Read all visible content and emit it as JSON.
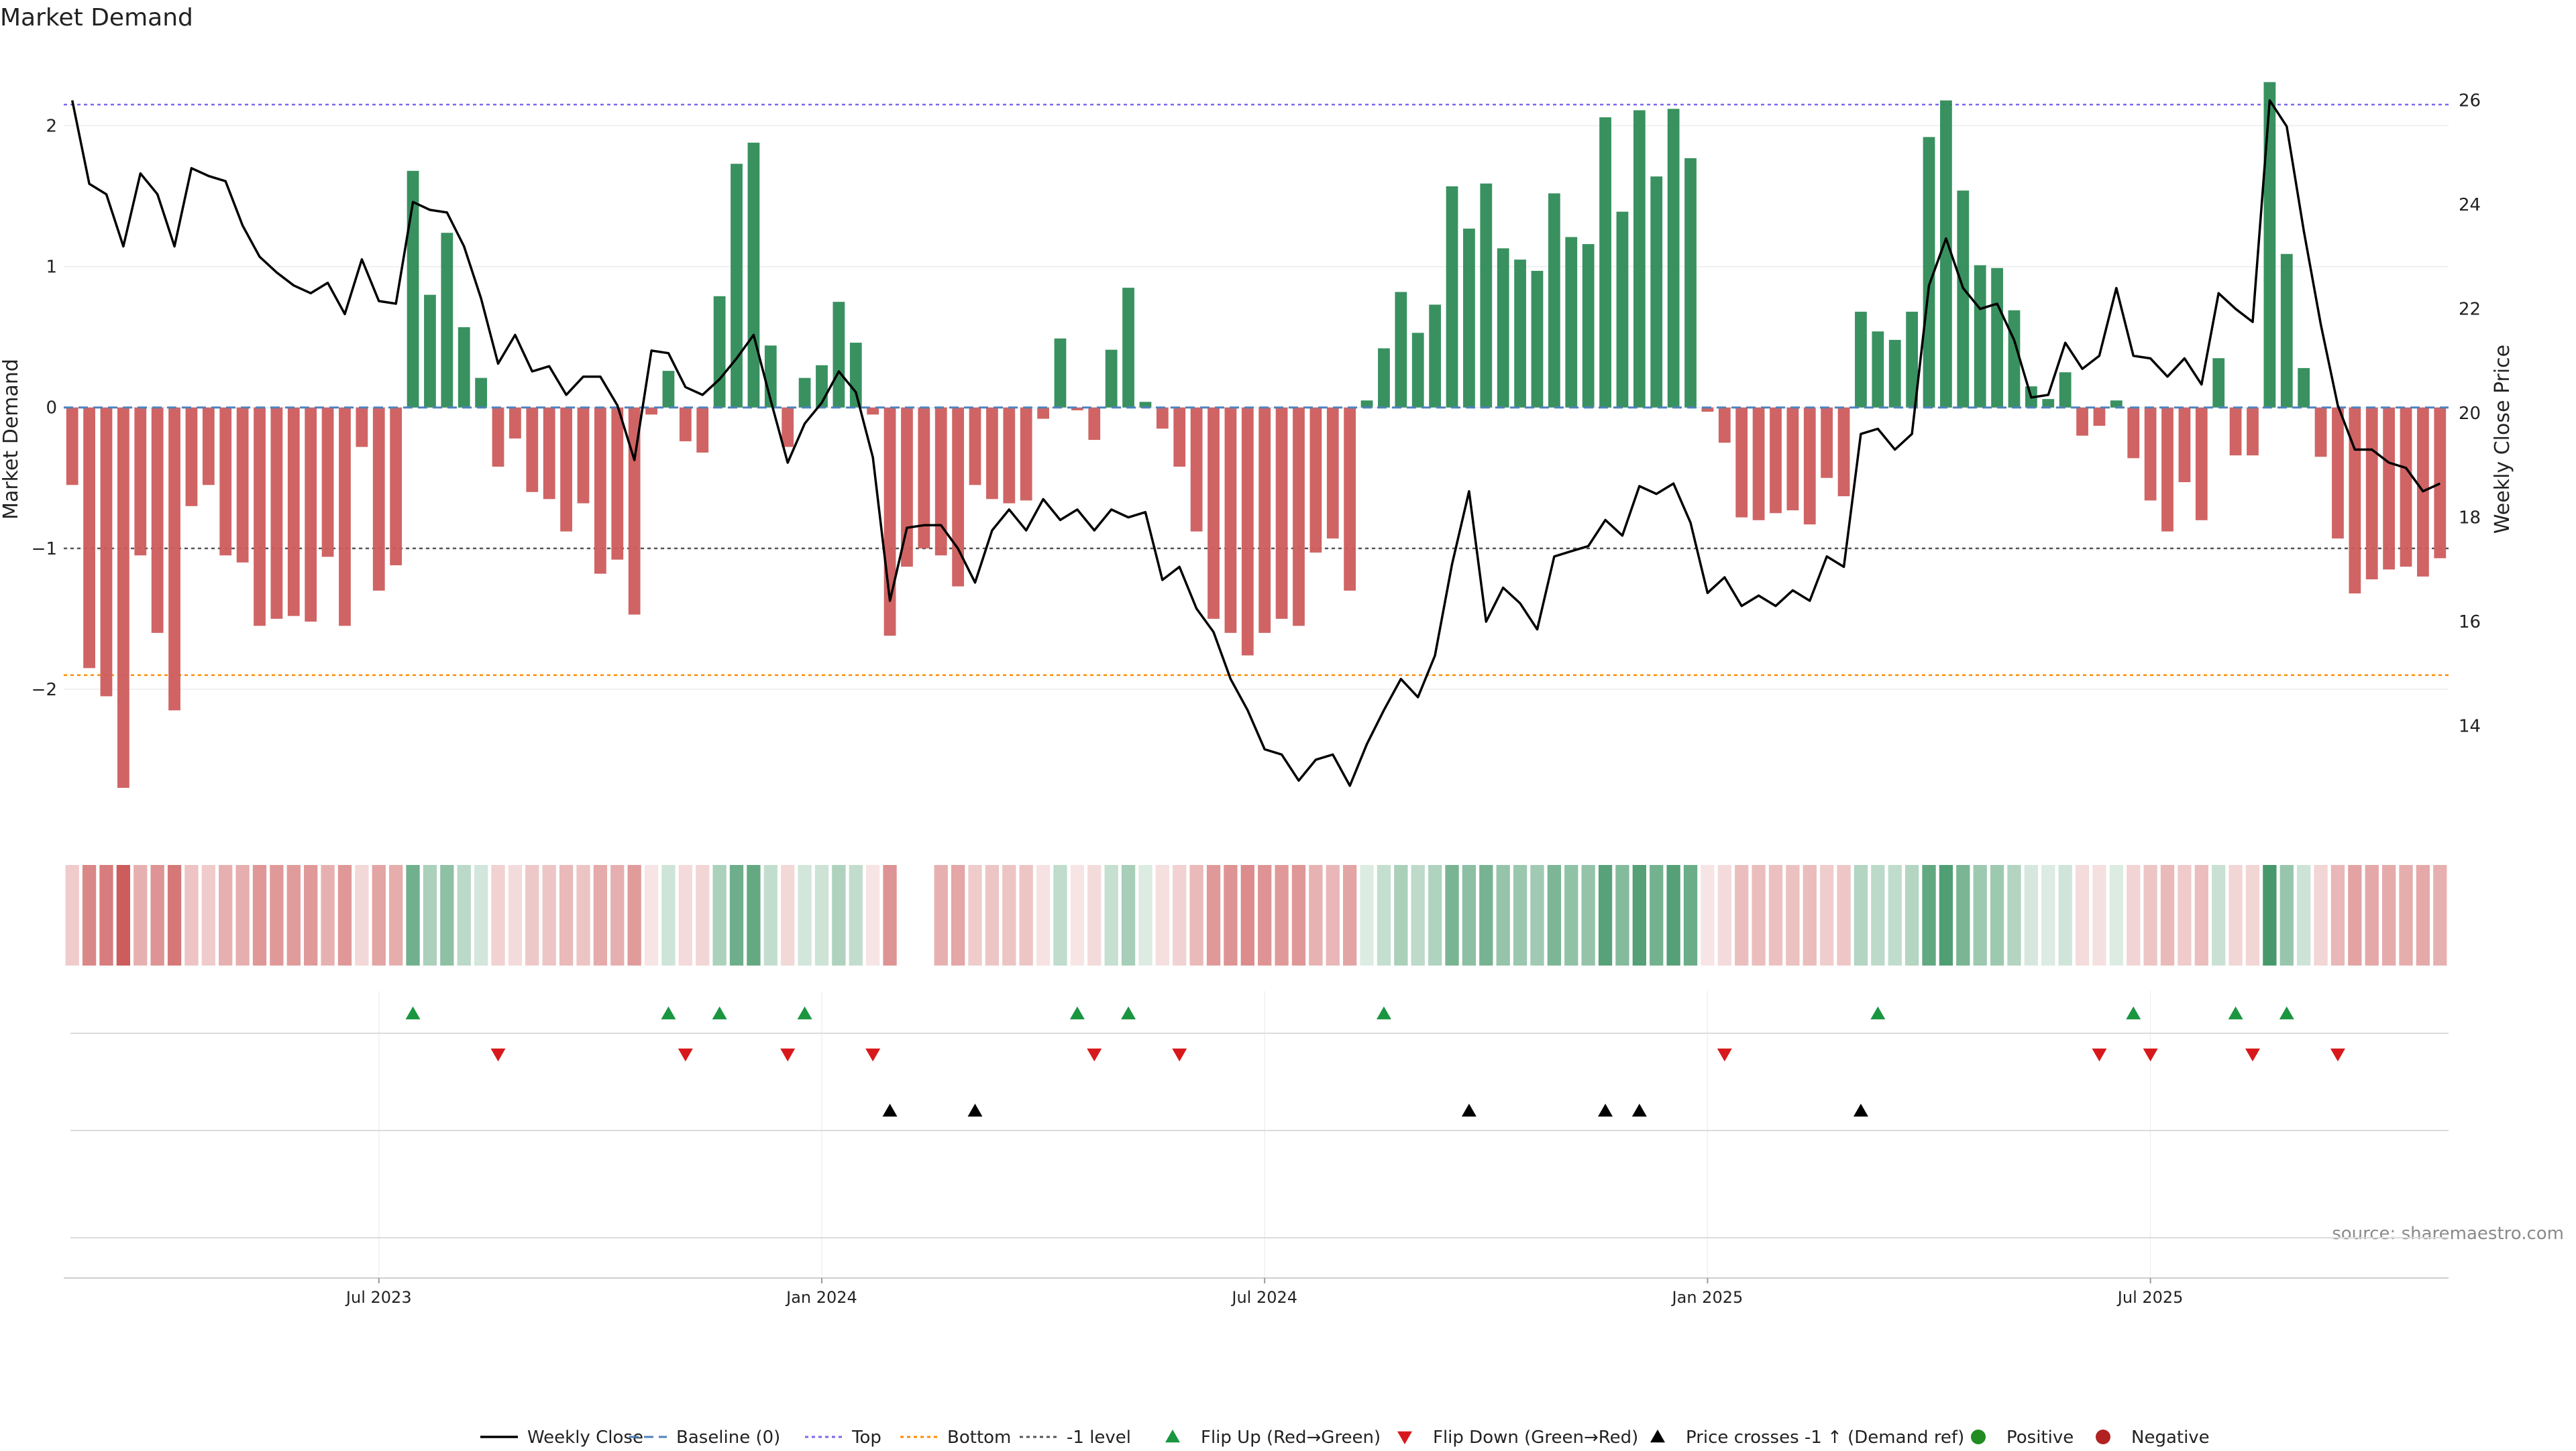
{
  "title": "Market Demand",
  "chart_data": {
    "type": "bar",
    "title": "Market Demand",
    "ylabel": "Market Demand",
    "y2label": "Weekly Close Price",
    "ylim": [
      -3.0,
      2.55
    ],
    "y2lim": [
      12.0,
      27.0
    ],
    "yticks": [
      -2,
      -1,
      0,
      1,
      2
    ],
    "y2ticks": [
      14,
      16,
      18,
      20,
      22,
      24,
      26
    ],
    "ref_lines": {
      "top": 2.15,
      "bottom": -1.9,
      "minus_one": -1.0,
      "baseline": 0
    },
    "x_tick_labels": [
      {
        "label": "Jul 2023",
        "week": 18
      },
      {
        "label": "Jan 2024",
        "week": 44
      },
      {
        "label": "Jul 2024",
        "week": 70
      },
      {
        "label": "Jan 2025",
        "week": 96
      },
      {
        "label": "Jul 2025",
        "week": 122
      }
    ],
    "demand": [
      -0.55,
      -1.85,
      -2.05,
      -2.7,
      -1.05,
      -1.6,
      -2.15,
      -0.7,
      -0.55,
      -1.05,
      -1.1,
      -1.55,
      -1.5,
      -1.48,
      -1.52,
      -1.06,
      -1.55,
      -0.28,
      -1.3,
      -1.12,
      1.68,
      0.8,
      1.24,
      0.57,
      0.21,
      -0.42,
      -0.22,
      -0.6,
      -0.65,
      -0.88,
      -0.68,
      -1.18,
      -1.08,
      -1.47,
      -0.05,
      0.26,
      -0.24,
      -0.32,
      0.79,
      1.73,
      1.88,
      0.44,
      -0.28,
      0.21,
      0.3,
      0.75,
      0.46,
      -0.05,
      -1.62,
      -1.13,
      -1.0,
      -1.05,
      -1.27,
      -0.55,
      -0.65,
      -0.68,
      -0.66,
      -0.08,
      0.49,
      -0.02,
      -0.23,
      0.41,
      0.85,
      0.04,
      -0.15,
      -0.42,
      -0.88,
      -1.5,
      -1.6,
      -1.76,
      -1.6,
      -1.5,
      -1.55,
      -1.03,
      -0.93,
      -1.3,
      0.05,
      0.42,
      0.82,
      0.53,
      0.73,
      1.57,
      1.27,
      1.59,
      1.13,
      1.05,
      0.97,
      1.52,
      1.21,
      1.16,
      2.06,
      1.39,
      2.11,
      1.64,
      2.12,
      1.77,
      -0.03,
      -0.25,
      -0.78,
      -0.8,
      -0.75,
      -0.73,
      -0.83,
      -0.5,
      -0.63,
      0.68,
      0.54,
      0.48,
      0.68,
      1.92,
      2.18,
      1.54,
      1.01,
      0.99,
      0.69,
      0.15,
      0.06,
      0.25,
      -0.2,
      -0.13,
      0.05,
      -0.36,
      -0.66,
      -0.88,
      -0.53,
      -0.8,
      0.35,
      -0.34,
      -0.34,
      2.31,
      1.09,
      0.28,
      -0.35,
      -0.93,
      -1.32,
      -1.22,
      -1.15,
      -1.13,
      -1.2,
      -1.07
    ],
    "weekly_close": [
      26.0,
      24.4,
      24.2,
      23.2,
      24.6,
      24.2,
      23.2,
      24.7,
      24.55,
      24.45,
      23.6,
      23.0,
      22.7,
      22.45,
      22.3,
      22.5,
      21.9,
      22.95,
      22.15,
      22.1,
      24.05,
      23.9,
      23.85,
      23.2,
      22.2,
      20.95,
      21.5,
      20.8,
      20.9,
      20.35,
      20.7,
      20.7,
      20.15,
      19.1,
      21.2,
      21.15,
      20.5,
      20.35,
      20.65,
      21.05,
      21.5,
      20.25,
      19.05,
      19.8,
      20.2,
      20.8,
      20.4,
      19.15,
      16.4,
      17.8,
      17.85,
      17.85,
      17.4,
      16.75,
      17.75,
      18.15,
      17.75,
      18.35,
      17.95,
      18.15,
      17.75,
      18.15,
      18.0,
      18.1,
      16.8,
      17.05,
      16.25,
      15.8,
      14.9,
      14.3,
      13.55,
      13.45,
      12.95,
      13.35,
      13.45,
      12.85,
      13.65,
      14.3,
      14.9,
      14.55,
      15.35,
      17.1,
      18.5,
      16.0,
      16.65,
      16.35,
      15.85,
      17.25,
      17.35,
      17.45,
      17.95,
      17.65,
      18.6,
      18.45,
      18.65,
      17.9,
      16.55,
      16.85,
      16.3,
      16.5,
      16.3,
      16.6,
      16.4,
      17.25,
      17.05,
      19.6,
      19.7,
      19.3,
      19.6,
      22.45,
      23.35,
      22.4,
      22.0,
      22.1,
      21.4,
      20.3,
      20.35,
      21.35,
      20.85,
      21.1,
      22.4,
      21.1,
      21.05,
      20.7,
      21.05,
      20.55,
      22.3,
      22.0,
      21.75,
      26.0,
      25.5,
      23.5,
      21.7,
      20.15,
      19.3,
      19.3,
      19.05,
      18.95,
      18.5,
      18.65
    ],
    "flip_up_weeks": [
      20,
      35,
      38,
      43,
      59,
      62,
      77,
      106,
      121,
      127,
      130
    ],
    "flip_down_weeks": [
      25,
      36,
      42,
      47,
      60,
      65,
      97,
      119,
      122,
      128,
      133
    ],
    "price_cross_weeks": [
      48,
      53,
      82,
      90,
      92,
      105
    ],
    "legend": [
      "Weekly Close",
      "Baseline (0)",
      "Top",
      "Bottom",
      "-1 level",
      "Flip Up (Red→Green)",
      "Flip Down (Green→Red)",
      "Price crosses -1 ↑ (Demand ref)",
      "Positive",
      "Negative"
    ]
  },
  "source": "source: sharemaestro.com",
  "colors": {
    "positive": "#2e8b57",
    "negative": "#cd5c5c",
    "close_line": "#000000",
    "baseline": "#4f81bd",
    "top": "#7b68ee",
    "bottom": "#ff8c00",
    "minus_one": "#555555",
    "flip_up": "#1a9641",
    "flip_down": "#d7191c",
    "positive_dot": "#228b22",
    "negative_dot": "#b22222"
  }
}
